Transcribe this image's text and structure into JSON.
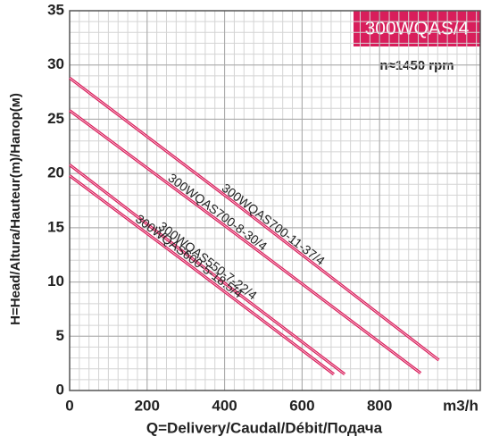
{
  "chart_data": {
    "type": "line",
    "badge": "300WQAS/4",
    "speed": "n≈1450 rpm",
    "x_label": "Q=Delivery/Caudal/Débit/Подача",
    "x_unit": "m3/h",
    "y_label": "H=Head/Altura/Hauteur(m)/Напор(м)",
    "xlim": [
      0,
      1060
    ],
    "xticks": [
      0,
      200,
      400,
      600,
      800
    ],
    "ylim": [
      0,
      35
    ],
    "yticks": [
      0,
      5,
      10,
      15,
      20,
      25,
      30,
      35
    ],
    "grid": true,
    "minor_grid_step": [
      25,
      1
    ],
    "series": [
      {
        "name": "300WQAS700-11-37/4",
        "color": "#d81e5b",
        "x": [
          0,
          400,
          953
        ],
        "values": [
          28.8,
          18.0,
          2.8
        ]
      },
      {
        "name": "300WQAS700-8-30/4",
        "color": "#d81e5b",
        "x": [
          0,
          400,
          906
        ],
        "values": [
          25.8,
          15.2,
          1.6
        ]
      },
      {
        "name": "300WQAS550-7-22/4",
        "color": "#d81e5b",
        "x": [
          0,
          300,
          710
        ],
        "values": [
          20.8,
          12.6,
          1.5
        ]
      },
      {
        "name": "300WQAS600-5-18.5/4",
        "color": "#d81e5b",
        "x": [
          0,
          300,
          682
        ],
        "values": [
          19.8,
          11.8,
          1.5
        ]
      }
    ]
  }
}
